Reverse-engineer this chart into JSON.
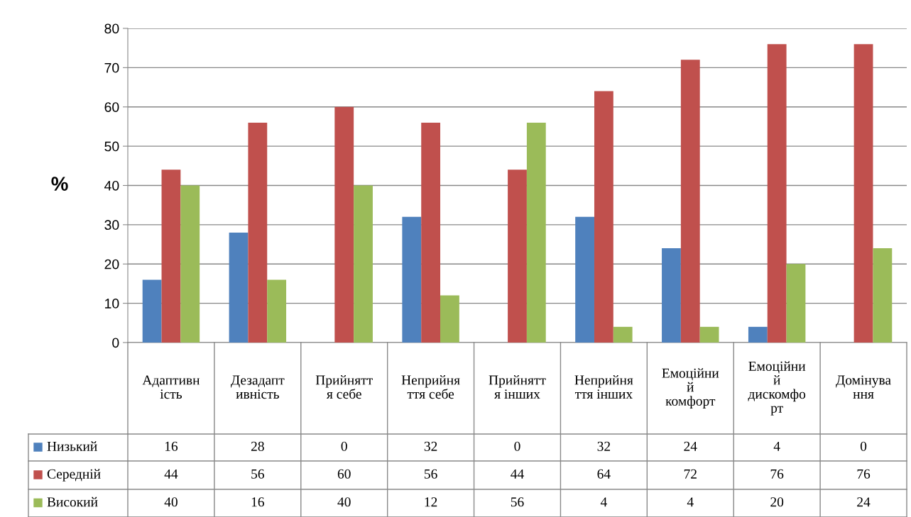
{
  "chart_data": {
    "type": "bar",
    "ylabel": "%",
    "categories": [
      "Адаптивн\nість",
      "Дезадапт\nивність",
      "Прийнятт\nя себе",
      "Неприйня\nття себе",
      "Прийнятт\nя інших",
      "Неприйня\nття інших",
      "Емоційни\nй\nкомфорт",
      "Емоційни\nй\nдискомфо\nрт",
      "Домінува\nння"
    ],
    "series": [
      {
        "name": "Низький",
        "color": "#4f81bd",
        "values": [
          16,
          28,
          0,
          32,
          0,
          32,
          24,
          4,
          0
        ]
      },
      {
        "name": "Середній",
        "color": "#c0504d",
        "values": [
          44,
          56,
          60,
          56,
          44,
          64,
          72,
          76,
          76
        ]
      },
      {
        "name": "Високий",
        "color": "#9bbb59",
        "values": [
          40,
          16,
          40,
          12,
          56,
          4,
          4,
          20,
          24
        ]
      }
    ],
    "ylim": [
      0,
      80
    ],
    "yticks": [
      0,
      10,
      20,
      30,
      40,
      50,
      60,
      70,
      80
    ],
    "grid": "y",
    "legend": "bottom left",
    "data_labels": true
  }
}
